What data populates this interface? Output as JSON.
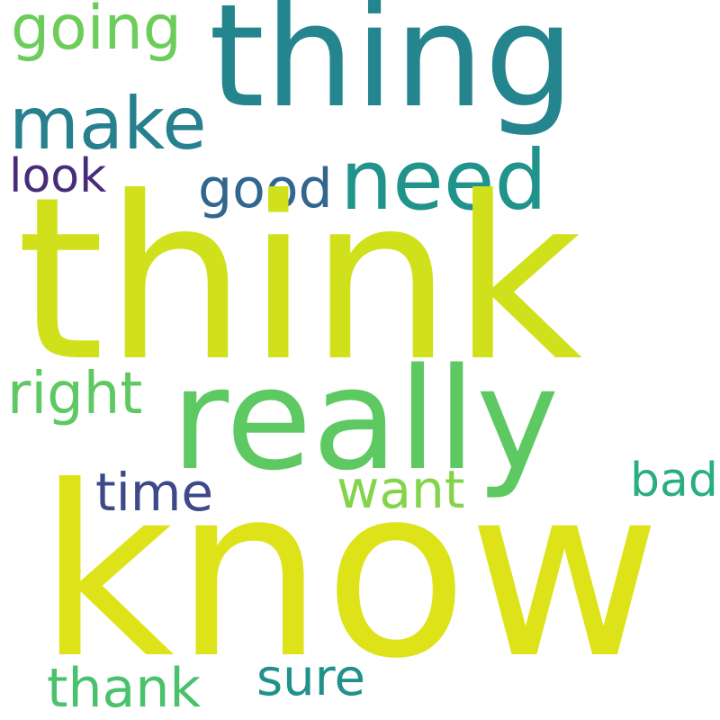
{
  "words": {
    "thing": {
      "text": "thing",
      "color": "#25858e"
    },
    "going": {
      "text": "going",
      "color": "#6ccd5a"
    },
    "make": {
      "text": "make",
      "color": "#27808e"
    },
    "look": {
      "text": "look",
      "color": "#472c7a"
    },
    "good": {
      "text": "good",
      "color": "#31668e"
    },
    "need": {
      "text": "need",
      "color": "#20938c"
    },
    "think": {
      "text": "think",
      "color": "#d0e11c"
    },
    "right": {
      "text": "right",
      "color": "#5ec962"
    },
    "really": {
      "text": "really",
      "color": "#5ec962"
    },
    "time": {
      "text": "time",
      "color": "#3e4989"
    },
    "want": {
      "text": "want",
      "color": "#84d44b"
    },
    "bad": {
      "text": "bad",
      "color": "#28ae80"
    },
    "know": {
      "text": "know",
      "color": "#dde318"
    },
    "thank": {
      "text": "thank",
      "color": "#4ac16d"
    },
    "sure": {
      "text": "sure",
      "color": "#21918c"
    }
  }
}
